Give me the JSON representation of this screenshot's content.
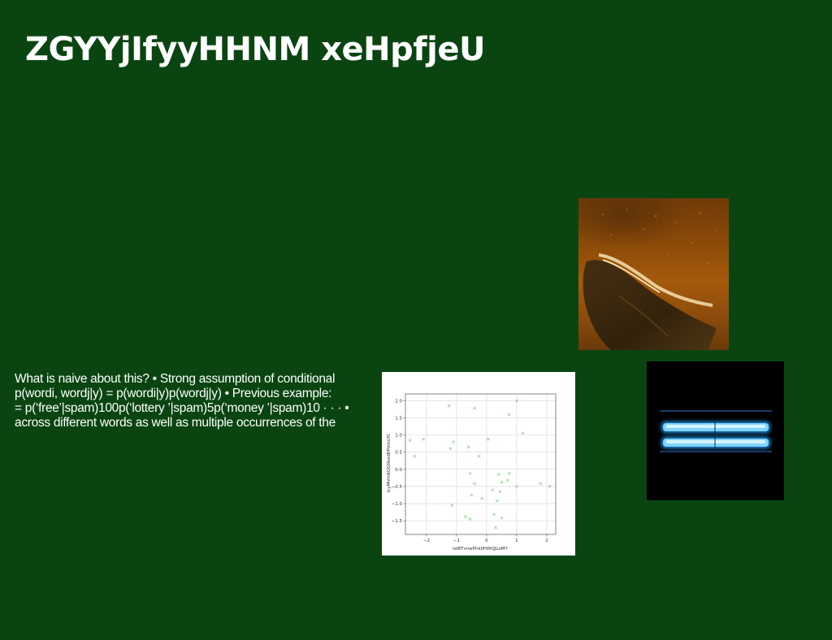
{
  "slide": {
    "title": "ZGYYjIfyyHHNM xeHpfjeU",
    "body_lines": [
      "What is naive about this? • Strong assumption of conditional",
      "p(wordi, wordj|y) = p(wordi|y)p(wordj|y) • Previous example:",
      "= p(‘free’|spam)100p(‘lottery ’|spam)5p(‘money ’|spam)10 · · · •",
      "across different words as well as multiple occurrences of the"
    ]
  },
  "colors": {
    "background": "#0a4511",
    "title": "#ffffff",
    "body_text": "#ffffff",
    "scatter_marker": "#8fd18f"
  },
  "chart_data": {
    "type": "scatter",
    "xlabel": "IwBTvnwPhkIIHWQJLoMY",
    "ylabel": "IcyMVmKQQIIkedEPtImsYC",
    "xlim": [
      -2.7,
      2.3
    ],
    "ylim": [
      -1.9,
      2.2
    ],
    "xticks": [
      -2,
      -1,
      0,
      1,
      2
    ],
    "xtick_labels": [
      "−2",
      "−1",
      "0",
      "1",
      "2"
    ],
    "yticks": [
      -1.5,
      -1.0,
      -0.5,
      0.0,
      0.5,
      1.0,
      1.5,
      2.0
    ],
    "ytick_labels": [
      "−1.5",
      "−1.0",
      "−0.5",
      "0.0",
      "0.5",
      "1.0",
      "1.5",
      "2.0"
    ],
    "grid": true,
    "marker": "x",
    "points": [
      {
        "x": -2.55,
        "y": 0.85
      },
      {
        "x": -2.4,
        "y": 0.38
      },
      {
        "x": -2.1,
        "y": 0.88
      },
      {
        "x": -1.25,
        "y": 1.85
      },
      {
        "x": -1.2,
        "y": 0.6
      },
      {
        "x": -1.1,
        "y": 0.8
      },
      {
        "x": -1.15,
        "y": -1.05
      },
      {
        "x": -0.7,
        "y": -1.38
      },
      {
        "x": -0.6,
        "y": 0.65
      },
      {
        "x": -0.55,
        "y": -0.12
      },
      {
        "x": -0.5,
        "y": -0.75
      },
      {
        "x": -0.55,
        "y": -1.45
      },
      {
        "x": -0.4,
        "y": 1.78
      },
      {
        "x": -0.4,
        "y": -0.42
      },
      {
        "x": -0.25,
        "y": 0.38
      },
      {
        "x": -0.15,
        "y": -0.85
      },
      {
        "x": 0.05,
        "y": 0.88
      },
      {
        "x": 0.2,
        "y": -0.6
      },
      {
        "x": 0.25,
        "y": -1.32
      },
      {
        "x": 0.3,
        "y": -1.7
      },
      {
        "x": 0.35,
        "y": -0.92
      },
      {
        "x": 0.4,
        "y": -0.15
      },
      {
        "x": 0.45,
        "y": -0.65
      },
      {
        "x": 0.5,
        "y": -0.38
      },
      {
        "x": 0.5,
        "y": -1.42
      },
      {
        "x": 0.7,
        "y": -0.32
      },
      {
        "x": 0.75,
        "y": -0.12
      },
      {
        "x": 0.75,
        "y": 1.6
      },
      {
        "x": 1.0,
        "y": 2.0
      },
      {
        "x": 1.0,
        "y": -0.5
      },
      {
        "x": 1.2,
        "y": 1.05
      },
      {
        "x": 1.8,
        "y": -0.42
      },
      {
        "x": 2.1,
        "y": -0.5
      }
    ]
  }
}
